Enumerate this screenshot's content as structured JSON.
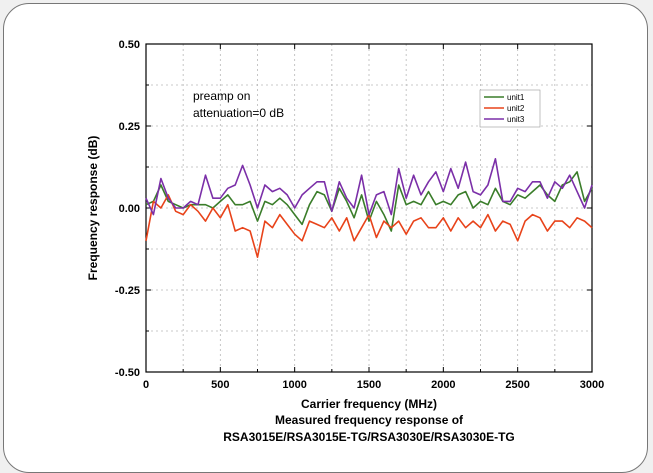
{
  "chart_data": {
    "type": "line",
    "title": "",
    "xlabel": "Carrier frequency (MHz)",
    "ylabel": "Frequency response (dB)",
    "xlim": [
      0,
      3000
    ],
    "ylim": [
      -0.5,
      0.5
    ],
    "xticks": [
      0,
      500,
      1000,
      1500,
      2000,
      2500,
      3000
    ],
    "yticks": [
      -0.5,
      -0.25,
      0.0,
      0.25,
      0.5
    ],
    "ytick_labels": [
      "-0.50",
      "-0.25",
      "0.00",
      "0.25",
      "0.50"
    ],
    "grid": true,
    "legend_position": "top-right",
    "annotations": [
      "preamp on",
      "attenuation=0 dB"
    ],
    "caption": [
      "Measured frequency response of",
      "RSA3015E/RSA3015E-TG/RSA3030E/RSA3030E-TG"
    ],
    "x": [
      0,
      50,
      100,
      150,
      200,
      250,
      300,
      350,
      400,
      450,
      500,
      550,
      600,
      650,
      700,
      750,
      800,
      850,
      900,
      950,
      1000,
      1050,
      1100,
      1150,
      1200,
      1250,
      1300,
      1350,
      1400,
      1450,
      1500,
      1550,
      1600,
      1650,
      1700,
      1750,
      1800,
      1850,
      1900,
      1950,
      2000,
      2050,
      2100,
      2150,
      2200,
      2250,
      2300,
      2350,
      2400,
      2450,
      2500,
      2550,
      2600,
      2650,
      2700,
      2750,
      2800,
      2850,
      2900,
      2950,
      3000
    ],
    "series": [
      {
        "name": "unit1",
        "color": "#3a7d2a",
        "values": [
          0.01,
          0.02,
          0.07,
          0.02,
          0.01,
          0.0,
          0.01,
          0.01,
          0.01,
          0.0,
          0.02,
          0.04,
          0.01,
          0.01,
          0.02,
          -0.04,
          0.02,
          0.01,
          0.03,
          0.01,
          -0.02,
          -0.05,
          0.01,
          0.05,
          0.04,
          -0.01,
          0.06,
          0.02,
          -0.03,
          0.04,
          -0.04,
          0.02,
          -0.02,
          -0.07,
          0.07,
          0.01,
          0.02,
          0.01,
          0.05,
          0.01,
          0.02,
          0.01,
          0.04,
          0.05,
          0.0,
          0.02,
          0.01,
          0.06,
          0.02,
          0.01,
          0.04,
          0.03,
          0.05,
          0.07,
          0.04,
          0.02,
          0.07,
          0.08,
          0.11,
          0.02,
          0.06
        ]
      },
      {
        "name": "unit2",
        "color": "#e8431a",
        "values": [
          -0.1,
          0.02,
          0.0,
          0.04,
          -0.01,
          -0.02,
          0.01,
          -0.01,
          -0.04,
          0.0,
          -0.03,
          0.01,
          -0.07,
          -0.06,
          -0.07,
          -0.15,
          -0.04,
          -0.06,
          -0.02,
          -0.05,
          -0.08,
          -0.1,
          -0.04,
          -0.05,
          -0.06,
          -0.03,
          -0.07,
          -0.03,
          -0.1,
          -0.06,
          -0.02,
          -0.09,
          -0.04,
          -0.06,
          -0.04,
          -0.08,
          -0.04,
          -0.03,
          -0.06,
          -0.06,
          -0.03,
          -0.07,
          -0.03,
          -0.06,
          -0.04,
          -0.06,
          -0.02,
          -0.07,
          -0.04,
          -0.05,
          -0.1,
          -0.04,
          -0.02,
          -0.03,
          -0.07,
          -0.04,
          -0.04,
          -0.06,
          -0.03,
          -0.04,
          -0.06
        ]
      },
      {
        "name": "unit3",
        "color": "#7b2fa8",
        "values": [
          0.03,
          -0.02,
          0.09,
          0.03,
          0.0,
          0.0,
          0.02,
          0.01,
          0.1,
          0.03,
          0.03,
          0.06,
          0.07,
          0.13,
          0.07,
          0.0,
          0.07,
          0.05,
          0.06,
          0.04,
          0.0,
          0.04,
          0.06,
          0.08,
          0.08,
          -0.01,
          0.08,
          0.03,
          0.0,
          0.1,
          -0.02,
          0.04,
          0.05,
          -0.02,
          0.12,
          0.03,
          0.1,
          0.04,
          0.08,
          0.11,
          0.05,
          0.12,
          0.06,
          0.14,
          0.05,
          0.04,
          0.07,
          0.15,
          0.02,
          0.02,
          0.06,
          0.05,
          0.08,
          0.08,
          0.03,
          0.08,
          0.06,
          0.1,
          0.05,
          0.0,
          0.07
        ]
      }
    ]
  }
}
